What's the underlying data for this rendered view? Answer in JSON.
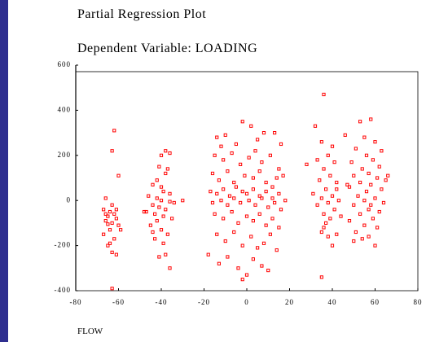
{
  "chart_data": {
    "type": "scatter",
    "title": "Partial Regression Plot",
    "subtitle": "Dependent Variable: LOADING",
    "x_label": "FLOW",
    "color": "#ff0000",
    "xlim": [
      -80,
      80
    ],
    "ylim": [
      -400,
      600
    ],
    "xticks": [
      -80,
      -60,
      -40,
      -20,
      0,
      20,
      40,
      60,
      80
    ],
    "yticks": [
      -400,
      -200,
      0,
      200,
      400,
      600
    ],
    "x": [
      -62,
      -63,
      -60,
      -66,
      -67,
      -64,
      -62,
      -65,
      -61,
      -66,
      -63,
      -60,
      -64,
      -67,
      -62,
      -65,
      -63,
      -61,
      -64,
      -66,
      -61,
      -63,
      -59,
      -65,
      -63,
      -38,
      -40,
      -36,
      -41,
      -37,
      -42,
      -38,
      -44,
      -39,
      -46,
      -42,
      -40,
      -36,
      -34,
      -44,
      -41,
      -38,
      -47,
      -43,
      -39,
      -35,
      -42,
      -45,
      -40,
      -37,
      -43,
      -39,
      -41,
      -38,
      -36,
      -30,
      -48,
      -36,
      -40,
      -44,
      -14,
      -12,
      -10,
      -5,
      -2,
      2,
      5,
      8,
      13,
      16,
      -15,
      -11,
      -7,
      -3,
      1,
      4,
      7,
      11,
      15,
      17,
      -16,
      -13,
      -9,
      -6,
      -1,
      3,
      6,
      9,
      12,
      14,
      -17,
      -14,
      -11,
      -8,
      -5,
      -2,
      0,
      3,
      6,
      9,
      12,
      15,
      18,
      -16,
      -12,
      -9,
      -6,
      -3,
      1,
      4,
      7,
      10,
      13,
      16,
      -15,
      -11,
      -7,
      -4,
      0,
      3,
      6,
      9,
      12,
      15,
      -14,
      -10,
      -6,
      -2,
      2,
      5,
      8,
      11,
      14,
      -13,
      -9,
      -4,
      0,
      3,
      7,
      -2,
      10,
      -18,
      36,
      32,
      35,
      40,
      38,
      33,
      41,
      36,
      39,
      34,
      42,
      37,
      31,
      40,
      35,
      43,
      38,
      33,
      41,
      36,
      39,
      44,
      37,
      35,
      38,
      40,
      42,
      36,
      35,
      28,
      46,
      42,
      58,
      53,
      55,
      60,
      51,
      63,
      56,
      49,
      59,
      62,
      54,
      57,
      50,
      61,
      65,
      53,
      58,
      48,
      63,
      56,
      52,
      60,
      55,
      64,
      50,
      57,
      62,
      53,
      59,
      48,
      55,
      61,
      51,
      57,
      50,
      60,
      54,
      66,
      47,
      58
    ],
    "y": [
      310,
      220,
      110,
      10,
      -40,
      -50,
      -60,
      -70,
      -80,
      -90,
      -100,
      -110,
      -130,
      -150,
      -170,
      -200,
      -230,
      -240,
      -190,
      -60,
      -40,
      -20,
      -130,
      -105,
      -390,
      220,
      200,
      210,
      150,
      140,
      90,
      120,
      70,
      40,
      20,
      10,
      0,
      -5,
      -10,
      -20,
      -30,
      -40,
      -50,
      -60,
      -70,
      -80,
      -90,
      -110,
      -130,
      -150,
      -170,
      -190,
      -250,
      -240,
      -300,
      0,
      -50,
      30,
      60,
      -140,
      280,
      240,
      290,
      250,
      350,
      330,
      270,
      300,
      300,
      250,
      200,
      180,
      210,
      160,
      190,
      220,
      170,
      200,
      140,
      110,
      120,
      90,
      130,
      80,
      110,
      100,
      130,
      80,
      60,
      100,
      40,
      30,
      50,
      20,
      60,
      40,
      30,
      50,
      20,
      40,
      10,
      30,
      0,
      -10,
      0,
      -20,
      10,
      -10,
      0,
      -20,
      10,
      -30,
      -10,
      -40,
      -60,
      -80,
      -50,
      -100,
      -70,
      -90,
      -60,
      -110,
      -80,
      -120,
      -150,
      -180,
      -140,
      -200,
      -160,
      -210,
      -190,
      -150,
      -220,
      -280,
      -250,
      -300,
      -330,
      -260,
      -290,
      -350,
      -310,
      -240,
      470,
      330,
      260,
      240,
      200,
      180,
      170,
      140,
      110,
      90,
      80,
      50,
      30,
      20,
      10,
      0,
      -10,
      -20,
      -40,
      -60,
      -80,
      -70,
      -100,
      -140,
      -160,
      -200,
      -150,
      -120,
      -340,
      160,
      290,
      50,
      360,
      350,
      280,
      260,
      230,
      220,
      200,
      170,
      180,
      150,
      140,
      120,
      110,
      100,
      90,
      80,
      70,
      60,
      50,
      40,
      20,
      10,
      0,
      -10,
      -20,
      -40,
      -50,
      -60,
      -80,
      -90,
      -110,
      -120,
      -140,
      -160,
      -180,
      -200,
      -170,
      110,
      70,
      -20
    ]
  }
}
